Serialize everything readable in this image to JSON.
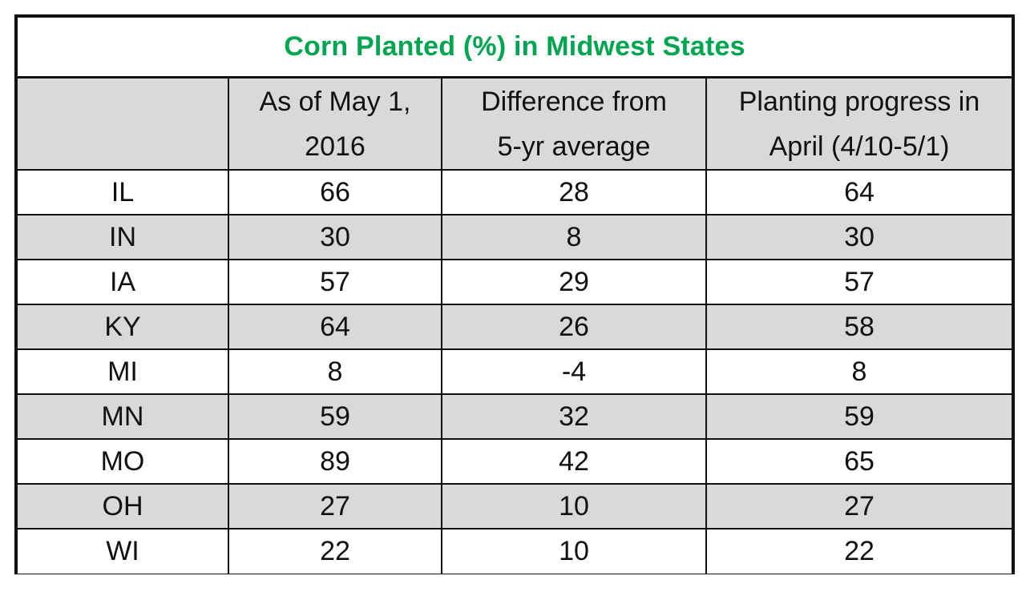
{
  "chart_data": {
    "type": "table",
    "title": "Corn Planted (%) in Midwest States",
    "columns": [
      "",
      "As of May 1, 2016",
      "Difference from 5-yr average",
      "Planting progress in April (4/10-5/1)"
    ],
    "header_lines": [
      [
        ""
      ],
      [
        "As of May 1,",
        "2016"
      ],
      [
        "Difference from",
        "5-yr average"
      ],
      [
        "Planting progress in",
        "April (4/10-5/1)"
      ]
    ],
    "rows": [
      {
        "state": "IL",
        "as_of_may_1": "66",
        "difference": "28",
        "april_progress": "64"
      },
      {
        "state": "IN",
        "as_of_may_1": "30",
        "difference": "8",
        "april_progress": "30"
      },
      {
        "state": "IA",
        "as_of_may_1": "57",
        "difference": "29",
        "april_progress": "57"
      },
      {
        "state": "KY",
        "as_of_may_1": "64",
        "difference": "26",
        "april_progress": "58"
      },
      {
        "state": "MI",
        "as_of_may_1": "8",
        "difference": "-4",
        "april_progress": "8"
      },
      {
        "state": "MN",
        "as_of_may_1": "59",
        "difference": "32",
        "april_progress": "59"
      },
      {
        "state": "MO",
        "as_of_may_1": "89",
        "difference": "42",
        "april_progress": "65"
      },
      {
        "state": "OH",
        "as_of_may_1": "27",
        "difference": "10",
        "april_progress": "27"
      },
      {
        "state": "WI",
        "as_of_may_1": "22",
        "difference": "10",
        "april_progress": "22"
      }
    ]
  },
  "colors": {
    "title": "#00a550",
    "shaded_row": "#d9d9d9",
    "border": "#111111",
    "background": "#ffffff"
  }
}
